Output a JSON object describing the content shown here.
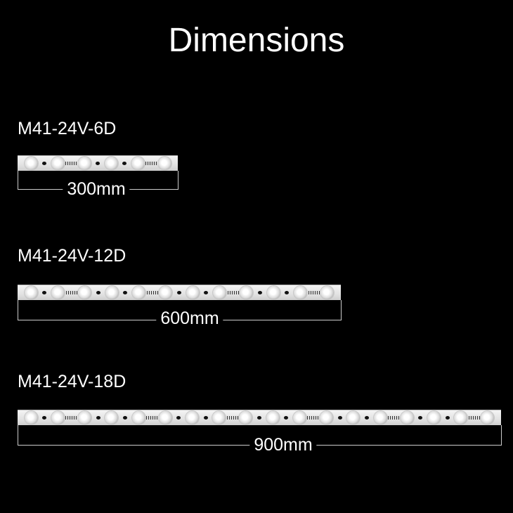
{
  "title": "Dimensions",
  "products": [
    {
      "model": "M41-24V-6D",
      "length": "300mm",
      "leds": 6
    },
    {
      "model": "M41-24V-12D",
      "length": "600mm",
      "leds": 12
    },
    {
      "model": "M41-24V-18D",
      "length": "900mm",
      "leds": 18
    }
  ],
  "colors": {
    "background": "#000000",
    "text": "#ffffff",
    "strip": "#eeeeee"
  }
}
